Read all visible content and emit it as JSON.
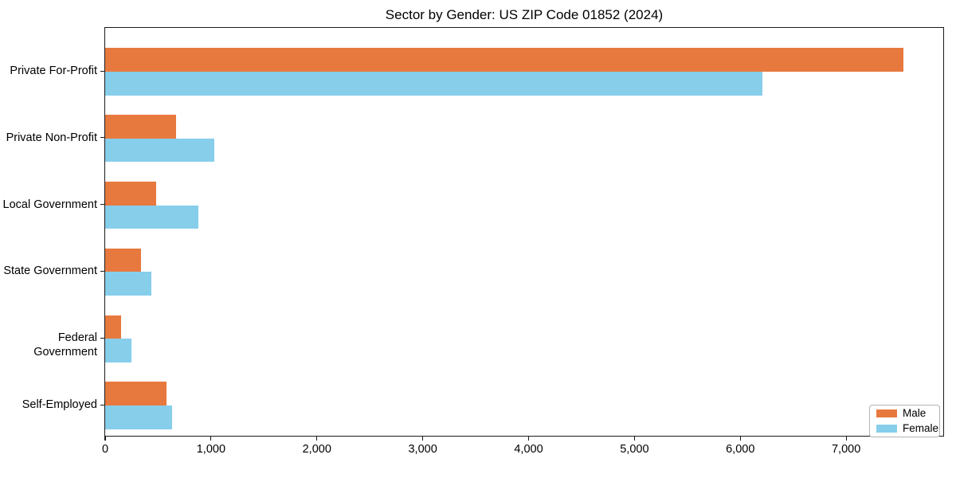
{
  "title": "Sector by Gender: US ZIP Code 01852 (2024)",
  "chart_data": {
    "type": "bar",
    "orientation": "horizontal",
    "title": "Sector by Gender: US ZIP Code 01852 (2024)",
    "xlabel": "",
    "ylabel": "",
    "grid": false,
    "categories": [
      "Private For-Profit",
      "Private Non-Profit",
      "Local Government",
      "State Government",
      "Federal Government",
      "Self-Employed"
    ],
    "series": [
      {
        "name": "Male",
        "color": "#e8793e",
        "values": [
          7540,
          670,
          480,
          340,
          150,
          580
        ]
      },
      {
        "name": "Female",
        "color": "#87ceeb",
        "values": [
          6210,
          1030,
          880,
          440,
          250,
          630
        ]
      }
    ],
    "xlim": [
      0,
      7917
    ],
    "xticks": [
      0,
      1000,
      2000,
      3000,
      4000,
      5000,
      6000,
      7000
    ],
    "xtick_labels": [
      "0",
      "1,000",
      "2,000",
      "3,000",
      "4,000",
      "5,000",
      "6,000",
      "7,000"
    ],
    "legend": {
      "position": "lower right",
      "entries": [
        {
          "label": "Male",
          "color": "#e8793e"
        },
        {
          "label": "Female",
          "color": "#87ceeb"
        }
      ]
    }
  }
}
